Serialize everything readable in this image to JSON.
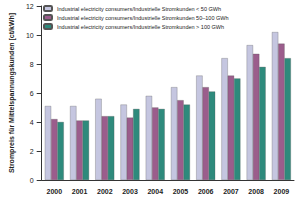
{
  "chart_data": {
    "type": "bar",
    "y_label": "Strompreis für Mittelspannungskunden [ct/kWh]",
    "categories": [
      "2000",
      "2001",
      "2002",
      "2003",
      "2004",
      "2005",
      "2006",
      "2007",
      "2008",
      "2009"
    ],
    "series": [
      {
        "name": "Industrial electricity consumers/Industrielle Stromkunden < 50 GWh",
        "color": "#c5c6e0",
        "values": [
          5.1,
          5.1,
          5.6,
          5.2,
          5.8,
          6.4,
          7.2,
          8.4,
          9.3,
          10.2
        ]
      },
      {
        "name": "Industrial electricity consumers/Industrielle Stromkunden 50–100 GWh",
        "color": "#9b5d8c",
        "values": [
          4.2,
          4.1,
          4.4,
          4.3,
          5.0,
          5.5,
          6.4,
          7.2,
          8.7,
          9.4
        ]
      },
      {
        "name": "Industrial electricity consumers/Industrielle Stromkunden > 100 GWh",
        "color": "#2e8a7c",
        "values": [
          4.0,
          4.1,
          4.4,
          4.9,
          4.9,
          5.2,
          6.1,
          7.0,
          7.8,
          8.4
        ]
      }
    ],
    "ylim": [
      0,
      12
    ],
    "yticks": [
      0,
      2,
      4,
      6,
      8,
      10,
      12
    ],
    "grid": false,
    "legend": "upper left"
  }
}
